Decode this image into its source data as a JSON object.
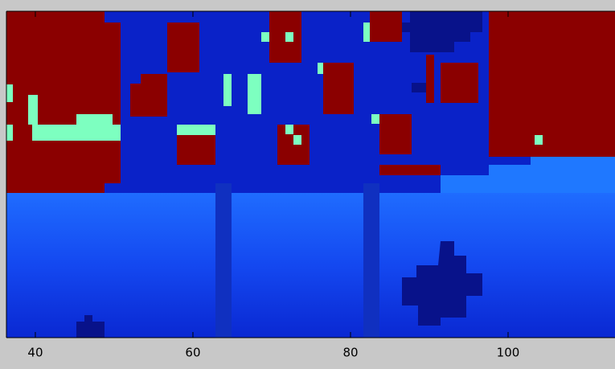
{
  "chart_data": {
    "type": "image",
    "xlim": [
      36.33,
      113.57
    ],
    "xticks": [
      40,
      60,
      80,
      100
    ]
  }
}
